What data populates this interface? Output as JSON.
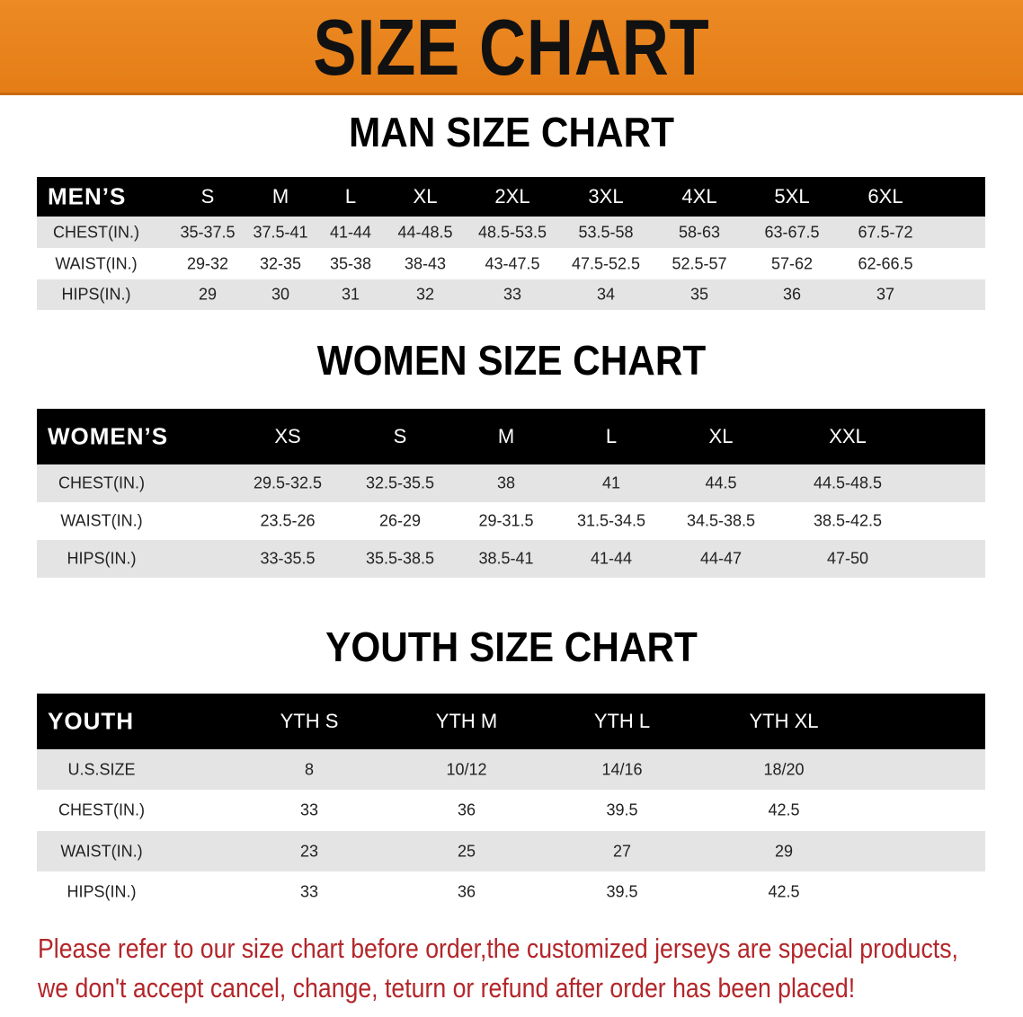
{
  "banner_title": "SIZE CHART",
  "colors": {
    "banner": "#e8821e",
    "header": "#000000",
    "row_alt": "#e4e4e4",
    "note": "#b3262a"
  },
  "men": {
    "title": "MAN SIZE CHART",
    "header": [
      "MEN’S",
      "S",
      "M",
      "L",
      "XL",
      "2XL",
      "3XL",
      "4XL",
      "5XL",
      "6XL"
    ],
    "rows": [
      [
        "CHEST(IN.)",
        "35-37.5",
        "37.5-41",
        "41-44",
        "44-48.5",
        "48.5-53.5",
        "53.5-58",
        "58-63",
        "63-67.5",
        "67.5-72"
      ],
      [
        "WAIST(IN.)",
        "29-32",
        "32-35",
        "35-38",
        "38-43",
        "43-47.5",
        "47.5-52.5",
        "52.5-57",
        "57-62",
        "62-66.5"
      ],
      [
        "HIPS(IN.)",
        "29",
        "30",
        "31",
        "32",
        "33",
        "34",
        "35",
        "36",
        "37"
      ]
    ]
  },
  "women": {
    "title": "WOMEN SIZE CHART",
    "header": [
      "WOMEN’S",
      "XS",
      "S",
      "M",
      "L",
      "XL",
      "XXL"
    ],
    "rows": [
      [
        "CHEST(IN.)",
        "29.5-32.5",
        "32.5-35.5",
        "38",
        "41",
        "44.5",
        "44.5-48.5"
      ],
      [
        "WAIST(IN.)",
        "23.5-26",
        "26-29",
        "29-31.5",
        "31.5-34.5",
        "34.5-38.5",
        "38.5-42.5"
      ],
      [
        "HIPS(IN.)",
        "33-35.5",
        "35.5-38.5",
        "38.5-41",
        "41-44",
        "44-47",
        "47-50"
      ]
    ]
  },
  "youth": {
    "title": "YOUTH SIZE CHART",
    "header": [
      "YOUTH",
      "YTH S",
      "YTH M",
      "YTH L",
      "YTH XL"
    ],
    "rows": [
      [
        "U.S.SIZE",
        "8",
        "10/12",
        "14/16",
        "18/20"
      ],
      [
        "CHEST(IN.)",
        "33",
        "36",
        "39.5",
        "42.5"
      ],
      [
        "WAIST(IN.)",
        "23",
        "25",
        "27",
        "29"
      ],
      [
        "HIPS(IN.)",
        "33",
        "36",
        "39.5",
        "42.5"
      ]
    ]
  },
  "note": {
    "line1": "Please refer to our size chart before order,the customized jerseys are special products,",
    "line2": "we don't accept cancel, change, teturn or refund after order has been placed!"
  }
}
